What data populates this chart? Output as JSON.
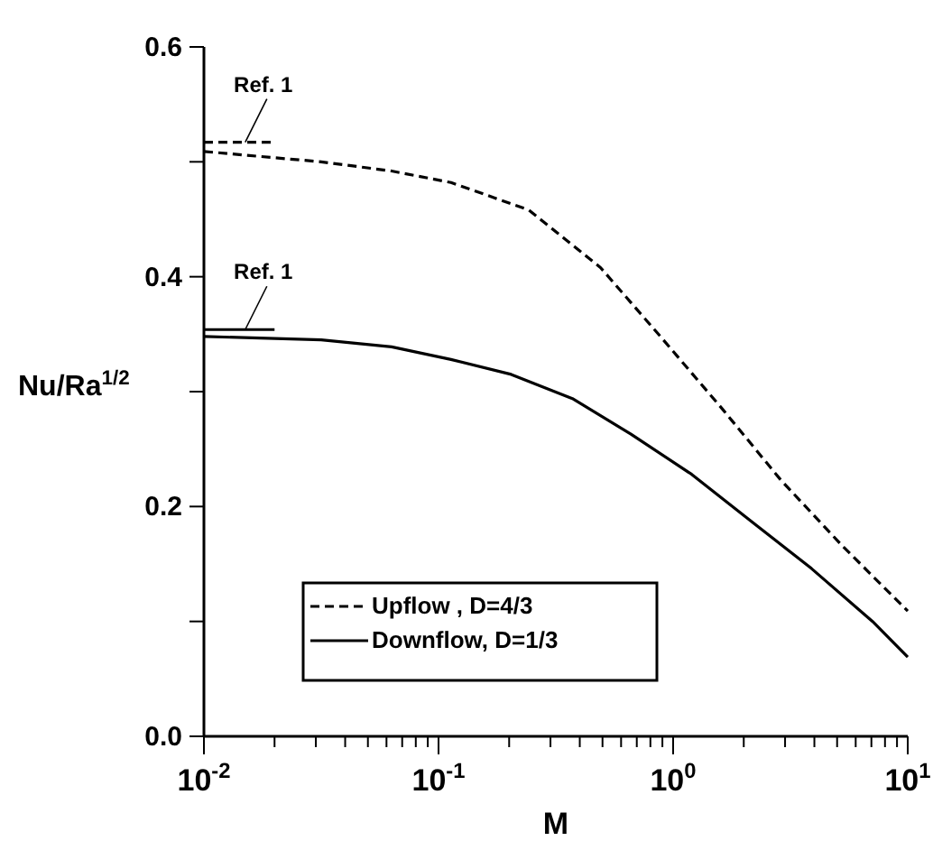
{
  "chart_data": {
    "type": "line",
    "xlabel": "M",
    "ylabel": "Nu/Ra$^{1/2}$",
    "log": "x",
    "grid": false,
    "legend": "bottom left",
    "marker": "none",
    "xlim": [
      0.01,
      10
    ],
    "ylim": [
      0,
      0.6
    ],
    "xticks": [
      {
        "value": 0.01,
        "label": "10$^{-2}$"
      },
      {
        "value": 0.02,
        "label": null
      },
      {
        "value": 0.03,
        "label": null
      },
      {
        "value": 0.04,
        "label": null
      },
      {
        "value": 0.05,
        "label": null
      },
      {
        "value": 0.06,
        "label": null
      },
      {
        "value": 0.07,
        "label": null
      },
      {
        "value": 0.08,
        "label": null
      },
      {
        "value": 0.09,
        "label": null
      },
      {
        "value": 0.1,
        "label": "10$^{-1}$"
      },
      {
        "value": 0.2,
        "label": null
      },
      {
        "value": 0.3,
        "label": null
      },
      {
        "value": 0.4,
        "label": null
      },
      {
        "value": 0.5,
        "label": null
      },
      {
        "value": 0.6,
        "label": null
      },
      {
        "value": 0.7,
        "label": null
      },
      {
        "value": 0.8,
        "label": null
      },
      {
        "value": 0.9,
        "label": null
      },
      {
        "value": 1,
        "label": "10$^{0}$"
      },
      {
        "value": 2,
        "label": null
      },
      {
        "value": 3,
        "label": null
      },
      {
        "value": 4,
        "label": null
      },
      {
        "value": 5,
        "label": null
      },
      {
        "value": 6,
        "label": null
      },
      {
        "value": 7,
        "label": null
      },
      {
        "value": 8,
        "label": null
      },
      {
        "value": 9,
        "label": null
      },
      {
        "value": 10,
        "label": "10$^{1}$"
      }
    ],
    "yticks": [
      {
        "value": 0,
        "label": "0.0"
      },
      {
        "value": 0.1,
        "label": null
      },
      {
        "value": 0.2,
        "label": "0.2"
      },
      {
        "value": 0.3,
        "label": null
      },
      {
        "value": 0.4,
        "label": "0.4"
      },
      {
        "value": 0.5,
        "label": null
      },
      {
        "value": 0.6,
        "label": "0.6"
      }
    ],
    "series": [
      {
        "name": "Upflow , D=4/3",
        "color": "#000000",
        "line_style": "dashed",
        "x": [
          0.01,
          0.0316,
          0.0631,
          0.113,
          0.243,
          0.49,
          0.9,
          1.62,
          2.88,
          5.25,
          10
        ],
        "values": [
          0.509,
          0.5,
          0.492,
          0.482,
          0.458,
          0.408,
          0.346,
          0.285,
          0.223,
          0.166,
          0.109
        ]
      },
      {
        "name": "Downflow, D=1/3",
        "color": "#000000",
        "line_style": "solid",
        "x": [
          0.01,
          0.0316,
          0.0631,
          0.113,
          0.204,
          0.372,
          0.661,
          1.2,
          2.19,
          3.89,
          7.08,
          10
        ],
        "values": [
          0.348,
          0.345,
          0.339,
          0.328,
          0.315,
          0.294,
          0.263,
          0.228,
          0.186,
          0.146,
          0.1,
          0.069
        ]
      },
      {
        "color": "#000000",
        "line_style": "dashed",
        "x": [
          0.01,
          0.02
        ],
        "values": [
          0.517,
          0.517
        ]
      },
      {
        "color": "#000000",
        "line_style": "solid",
        "x": [
          0.01,
          0.02
        ],
        "values": [
          0.354,
          0.354
        ]
      }
    ],
    "annotations": [
      {
        "text": "Ref. 1",
        "x": 0.015,
        "y": 0.517
      },
      {
        "text": "Ref. 1",
        "x": 0.015,
        "y": 0.354
      }
    ]
  }
}
